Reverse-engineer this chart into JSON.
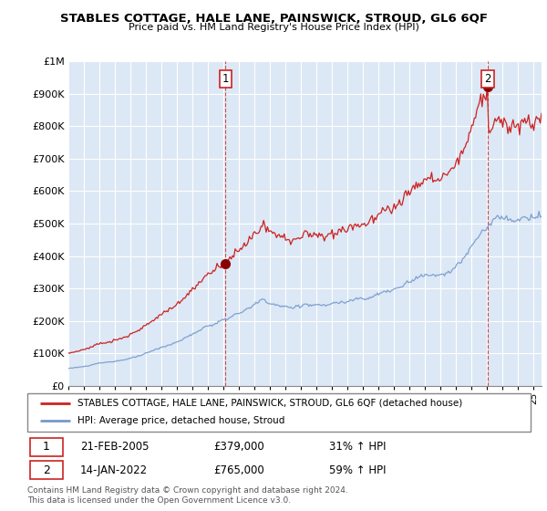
{
  "title": "STABLES COTTAGE, HALE LANE, PAINSWICK, STROUD, GL6 6QF",
  "subtitle": "Price paid vs. HM Land Registry's House Price Index (HPI)",
  "sale1_date": "21-FEB-2005",
  "sale1_price": 379000,
  "sale1_hpi": "31% ↑ HPI",
  "sale1_label": "1",
  "sale2_date": "14-JAN-2022",
  "sale2_price": 765000,
  "sale2_hpi": "59% ↑ HPI",
  "sale2_label": "2",
  "legend_line1": "STABLES COTTAGE, HALE LANE, PAINSWICK, STROUD, GL6 6QF (detached house)",
  "legend_line2": "HPI: Average price, detached house, Stroud",
  "footer": "Contains HM Land Registry data © Crown copyright and database right 2024.\nThis data is licensed under the Open Government Licence v3.0.",
  "red_color": "#cc2222",
  "blue_color": "#7799cc",
  "bg_fill": "#dce8f5",
  "ylim": [
    0,
    1000000
  ],
  "yticks": [
    0,
    100000,
    200000,
    300000,
    400000,
    500000,
    600000,
    700000,
    800000,
    900000,
    1000000
  ],
  "ytick_labels": [
    "£0",
    "£100K",
    "£200K",
    "£300K",
    "£400K",
    "£500K",
    "£600K",
    "£700K",
    "£800K",
    "£900K",
    "£1M"
  ],
  "xstart": 1995.0,
  "xend": 2025.5,
  "sale1_x": 2005.12,
  "sale2_x": 2022.04
}
